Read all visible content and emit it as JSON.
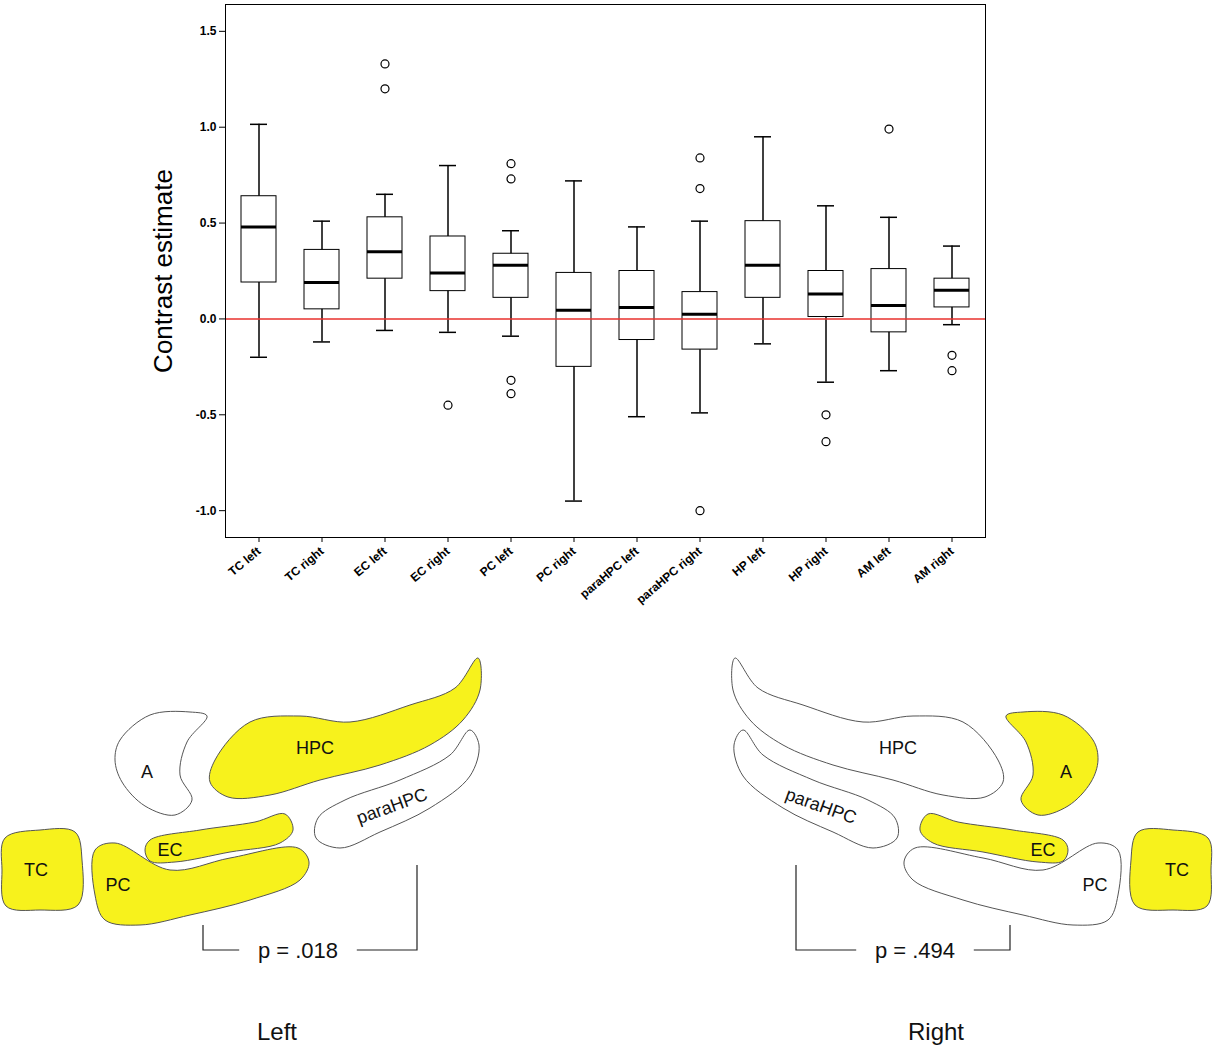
{
  "chart_data": {
    "type": "boxplot",
    "y_label": "Contrast estimate",
    "categories": [
      "TC left",
      "TC right",
      "EC left",
      "EC right",
      "PC left",
      "PC right",
      "paraHPC left",
      "paraHPC right",
      "HP left",
      "HP right",
      "AM left",
      "AM right"
    ],
    "boxes": [
      {
        "whisker_low": -0.2,
        "q1": 0.19,
        "median": 0.48,
        "q3": 0.64,
        "whisker_high": 1.015,
        "outliers": []
      },
      {
        "whisker_low": -0.12,
        "q1": 0.05,
        "median": 0.19,
        "q3": 0.36,
        "whisker_high": 0.51,
        "outliers": []
      },
      {
        "whisker_low": -0.06,
        "q1": 0.21,
        "median": 0.35,
        "q3": 0.53,
        "whisker_high": 0.65,
        "outliers": [
          1.33,
          1.2
        ]
      },
      {
        "whisker_low": -0.07,
        "q1": 0.145,
        "median": 0.24,
        "q3": 0.43,
        "whisker_high": 0.8,
        "outliers": [
          -0.45
        ]
      },
      {
        "whisker_low": -0.09,
        "q1": 0.11,
        "median": 0.28,
        "q3": 0.34,
        "whisker_high": 0.46,
        "outliers": [
          0.81,
          0.73,
          -0.32,
          -0.39
        ]
      },
      {
        "whisker_low": -0.95,
        "q1": -0.25,
        "median": 0.045,
        "q3": 0.24,
        "whisker_high": 0.72,
        "outliers": []
      },
      {
        "whisker_low": -0.51,
        "q1": -0.11,
        "median": 0.06,
        "q3": 0.25,
        "whisker_high": 0.48,
        "outliers": []
      },
      {
        "whisker_low": -0.49,
        "q1": -0.16,
        "median": 0.025,
        "q3": 0.14,
        "whisker_high": 0.51,
        "outliers": [
          0.84,
          0.68,
          -1.0
        ]
      },
      {
        "whisker_low": -0.13,
        "q1": 0.11,
        "median": 0.28,
        "q3": 0.51,
        "whisker_high": 0.95,
        "outliers": []
      },
      {
        "whisker_low": -0.33,
        "q1": 0.01,
        "median": 0.13,
        "q3": 0.25,
        "whisker_high": 0.59,
        "outliers": [
          -0.5,
          -0.64
        ]
      },
      {
        "whisker_low": -0.27,
        "q1": -0.07,
        "median": 0.07,
        "q3": 0.26,
        "whisker_high": 0.53,
        "outliers": [
          0.99
        ]
      },
      {
        "whisker_low": -0.03,
        "q1": 0.06,
        "median": 0.15,
        "q3": 0.21,
        "whisker_high": 0.38,
        "outliers": [
          -0.19,
          -0.27
        ]
      }
    ],
    "ylim": [
      -1.14,
      1.64
    ],
    "yticks": [
      {
        "value": -1,
        "label": "-1.0"
      },
      {
        "value": -0.5,
        "label": "-0.5"
      },
      {
        "value": 0,
        "label": "0.0"
      },
      {
        "value": 0.5,
        "label": "0.5"
      },
      {
        "value": 1,
        "label": "1.0"
      },
      {
        "value": 1.5,
        "label": "1.5"
      }
    ],
    "reference_lines": [
      {
        "value": 0,
        "color": "#e8312c"
      }
    ],
    "color": "#000000",
    "grid": false
  },
  "diagram": {
    "highlight_color": "#f7f21c",
    "panels": [
      {
        "side": "Left",
        "p_label": "p = .018",
        "regions": [
          {
            "label": "A",
            "highlighted": false
          },
          {
            "label": "HPC",
            "highlighted": true
          },
          {
            "label": "paraHPC",
            "highlighted": false
          },
          {
            "label": "EC",
            "highlighted": true
          },
          {
            "label": "PC",
            "highlighted": true
          },
          {
            "label": "TC",
            "highlighted": true
          }
        ]
      },
      {
        "side": "Right",
        "p_label": "p = .494",
        "regions": [
          {
            "label": "A",
            "highlighted": true
          },
          {
            "label": "HPC",
            "highlighted": false
          },
          {
            "label": "paraHPC",
            "highlighted": false
          },
          {
            "label": "EC",
            "highlighted": true
          },
          {
            "label": "PC",
            "highlighted": false
          },
          {
            "label": "TC",
            "highlighted": true
          }
        ]
      }
    ]
  }
}
